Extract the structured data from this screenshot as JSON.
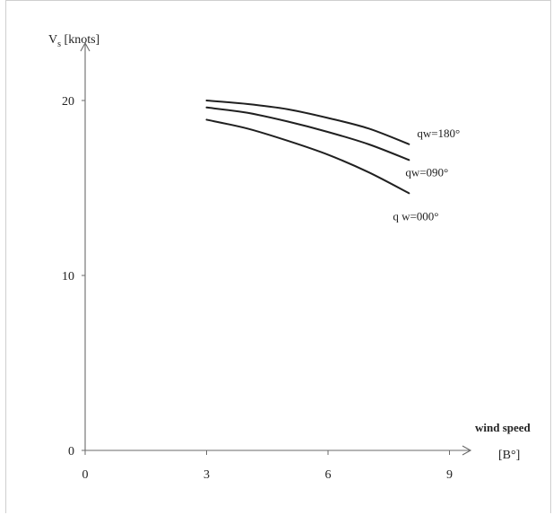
{
  "chart_data": {
    "type": "line",
    "ylabel": "V",
    "ylabel_subscript": "s",
    "ylabel_unit": " [knots]",
    "xlabel": "wind speed",
    "xlabel_unit": "[B°]",
    "xlim": [
      0,
      10
    ],
    "ylim": [
      0,
      22
    ],
    "x_ticks": [
      0,
      3,
      6,
      9
    ],
    "y_ticks": [
      0,
      10,
      20
    ],
    "grid": false,
    "series": [
      {
        "name": "qw=180°",
        "x": [
          3,
          4,
          5,
          6,
          7,
          8
        ],
        "y": [
          20.0,
          19.8,
          19.5,
          19.0,
          18.4,
          17.5
        ]
      },
      {
        "name": "qw=090°",
        "x": [
          3,
          4,
          5,
          6,
          7,
          8
        ],
        "y": [
          19.6,
          19.3,
          18.8,
          18.2,
          17.5,
          16.6
        ]
      },
      {
        "name": "q w=000°",
        "x": [
          3,
          4,
          5,
          6,
          7,
          8
        ],
        "y": [
          18.9,
          18.4,
          17.7,
          16.9,
          15.9,
          14.7
        ]
      }
    ]
  }
}
